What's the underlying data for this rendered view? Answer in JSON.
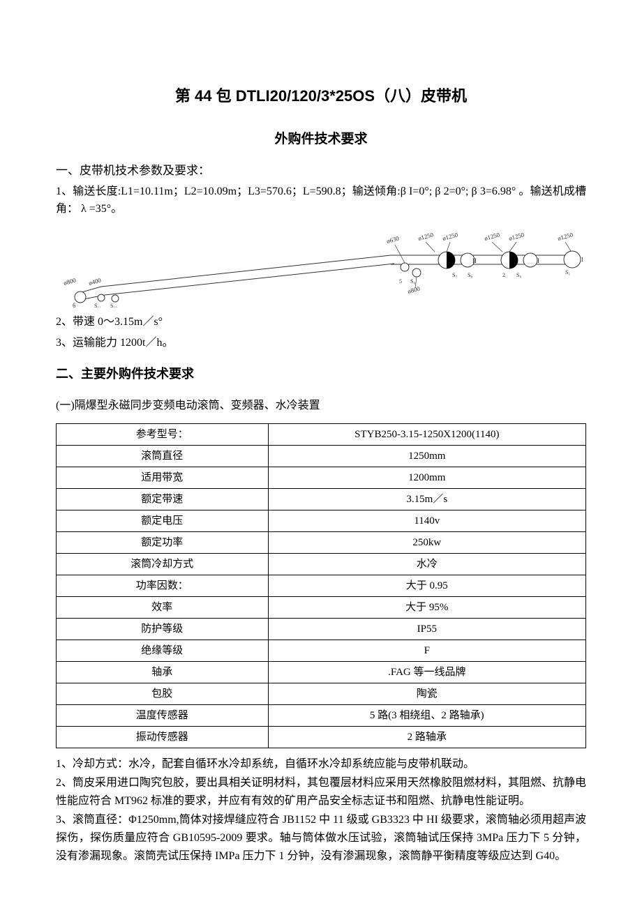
{
  "doc": {
    "title_main": "第 44 包 DTLI20/120/3*25OS（八）皮带机",
    "title_sub": "外购件技术要求",
    "section1_heading": "一、皮带机技术参数及要求：",
    "p1": "1、输送长度:L1=10.11m；L2=10.09m；L3=570.6；L=590.8；输送倾角:β I=0°; β 2=0°; β 3=6.98° 。输送机成槽角： λ =35°。",
    "p2": "2、带速 0～3.15m／s°",
    "p3": "3、运输能力 1200t／h。",
    "section2_heading": "二、主要外购件技术要求",
    "sub1": "(一)隔爆型永磁同步变频电动滚筒、变频器、水冷装置",
    "table1": {
      "rows": [
        [
          "参考型号：",
          "STYB250-3.15-1250X1200(1140)"
        ],
        [
          "滚筒直径",
          "1250mm"
        ],
        [
          "适用带宽",
          "1200mm"
        ],
        [
          "额定带速",
          "3.15m／s"
        ],
        [
          "额定电压",
          "1140v"
        ],
        [
          "额定功率",
          "250kw"
        ],
        [
          "滚筒冷却方式",
          "水冷"
        ],
        [
          "功率因数：",
          "大于 0.95"
        ],
        [
          "效率",
          "大于 95%"
        ],
        [
          "防护等级",
          "IP55"
        ],
        [
          "绝缘等级",
          "F"
        ],
        [
          "轴承",
          ".FAG 等一线品牌"
        ],
        [
          "包胶",
          "陶瓷"
        ],
        [
          "温度传感器",
          "5 路(3 相绕组、2 路轴承)"
        ],
        [
          "振动传感器",
          "2 路轴承"
        ]
      ]
    },
    "note1": "1、冷却方式：水冷，配套自循环水冷却系统，自循环水冷却系统应能与皮带机联动。",
    "note2": "2、筒皮采用进口陶究包胶，要出具相关证明材料，其包覆层材料应采用天然橡胶阻燃材料，其阻燃、抗静电性能应符合 MT962 标准的要求，并应有有效的矿用产品安全标志证书和阻燃、抗静电性能证明。",
    "note3": "3、滚筒直径：Φ1250mm,筒体对接焊缝应符合 JB1152 中 11 级或 GB3323 中 HI 级要求，滚筒轴必须用超声波探伤，探伤质量应符合 GB10595-2009 要求。轴与筒体做水压试验，滚筒轴试压保持 3MPa 压力下 5 分钟，没有渗漏现象。滚筒壳试压保持 IMPa 压力下 1 分钟，没有渗漏现象，滚筒静平衡精度等级应达到 G40。"
  },
  "diagram": {
    "stroke": "#333333",
    "label_fontsize": 9,
    "labels_top": [
      "ø630",
      "ø1250",
      "ø1250",
      "ø1250",
      "ø1250",
      "ø1250"
    ],
    "label_top_right": "1",
    "labels_left": [
      "ø800",
      "ø400"
    ],
    "labels_bottom_left": [
      "6",
      "S₁₁",
      "S₁₀"
    ],
    "labels_mid": [
      "ø800",
      "5",
      "S₆",
      "S₇",
      "S₈",
      "S₉",
      "II",
      "2",
      "I",
      "S₁"
    ],
    "circle_fill_half": "#000000",
    "circle_fill_open": "#ffffff"
  }
}
